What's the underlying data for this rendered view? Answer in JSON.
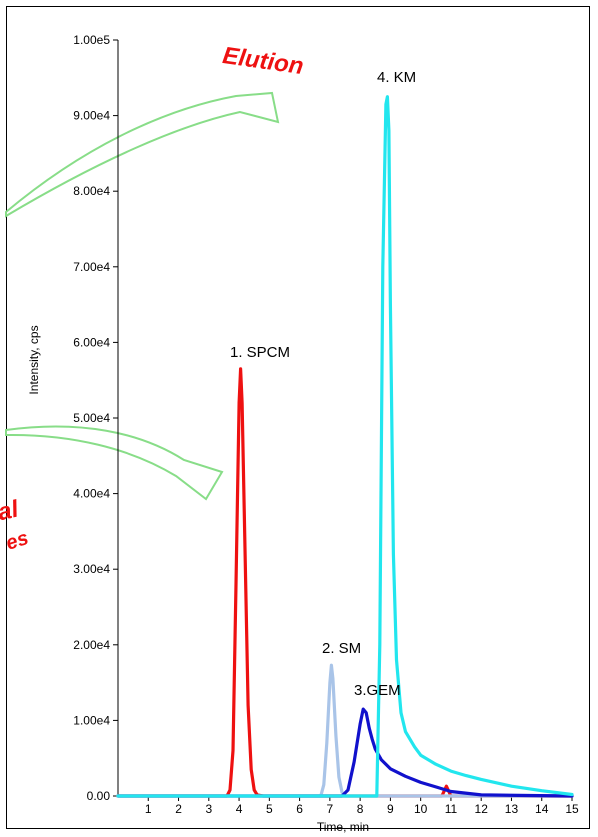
{
  "chart_data": {
    "type": "line",
    "title": "",
    "xlabel": "Time, min",
    "ylabel": "Intensity, cps",
    "xlim": [
      0,
      15
    ],
    "ylim": [
      0,
      100000
    ],
    "x_ticks": [
      "1",
      "2",
      "3",
      "4",
      "5",
      "6",
      "7",
      "8",
      "9",
      "10",
      "11",
      "12",
      "13",
      "14",
      "15"
    ],
    "y_ticks": [
      "0.00",
      "1.00e4",
      "2.00e4",
      "3.00e4",
      "4.00e4",
      "5.00e4",
      "6.00e4",
      "7.00e4",
      "8.00e4",
      "9.00e4",
      "1.00e5"
    ],
    "grid": false,
    "series": [
      {
        "label": "1. SPCM",
        "color": "#ee1111",
        "x": [
          0,
          3.6,
          3.7,
          3.8,
          3.9,
          4.0,
          4.05,
          4.1,
          4.2,
          4.3,
          4.4,
          4.5,
          4.6,
          4.8,
          10.7,
          10.85,
          11.0,
          15
        ],
        "y": [
          0,
          0,
          800,
          6000,
          28000,
          52000,
          56500,
          52000,
          32000,
          12000,
          3500,
          800,
          150,
          0,
          0,
          1300,
          0,
          0
        ]
      },
      {
        "label": "2. SM",
        "color": "#a9c4e8",
        "x": [
          0,
          6.7,
          6.8,
          6.9,
          7.0,
          7.05,
          7.1,
          7.2,
          7.3,
          7.4,
          7.5,
          15
        ],
        "y": [
          0,
          0,
          1500,
          7000,
          15000,
          17300,
          15500,
          8000,
          2500,
          500,
          0,
          0
        ]
      },
      {
        "label": "3.GEM",
        "color": "#1111cc",
        "x": [
          0,
          7.4,
          7.6,
          7.8,
          8.0,
          8.1,
          8.2,
          8.3,
          8.4,
          8.5,
          8.7,
          9.0,
          9.5,
          10.0,
          10.5,
          11.0,
          12.0,
          15
        ],
        "y": [
          0,
          0,
          800,
          4500,
          9500,
          11500,
          11000,
          9000,
          7500,
          6200,
          4800,
          3600,
          2600,
          1800,
          1200,
          600,
          150,
          0
        ]
      },
      {
        "label": "4. KM",
        "color": "#22e6ee",
        "x": [
          0,
          8.55,
          8.65,
          8.75,
          8.85,
          8.9,
          8.95,
          9.0,
          9.1,
          9.2,
          9.35,
          9.5,
          9.8,
          10.0,
          10.5,
          11.0,
          11.5,
          12.0,
          13.0,
          14.0,
          15.0
        ],
        "y": [
          0,
          0,
          20000,
          70000,
          91500,
          92500,
          88000,
          65000,
          32000,
          18000,
          11000,
          8500,
          6500,
          5400,
          4200,
          3300,
          2700,
          2200,
          1300,
          700,
          200
        ]
      }
    ],
    "annotations": [
      "1. SPCM",
      "2. SM",
      "3.GEM",
      "4. KM",
      "Elution",
      "al",
      "es"
    ]
  },
  "colors": {
    "arrow": "#88dd88",
    "callout": "#ee1111"
  }
}
